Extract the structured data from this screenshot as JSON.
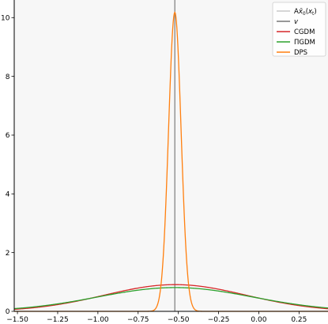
{
  "chart_data": {
    "type": "line",
    "title": "",
    "xlabel": "",
    "ylabel": "",
    "xlim": [
      -1.52,
      0.43
    ],
    "ylim": [
      0,
      10.6
    ],
    "xticks": [
      -1.5,
      -1.25,
      -1.0,
      -0.75,
      -0.5,
      -0.25,
      0.0,
      0.25
    ],
    "xtick_labels": [
      "−1.50",
      "−1.25",
      "−1.00",
      "−0.75",
      "−0.50",
      "−0.25",
      "0.00",
      "0.25"
    ],
    "yticks": [
      0,
      2,
      4,
      6,
      8,
      10
    ],
    "ytick_labels": [
      "0",
      "2",
      "4",
      "6",
      "8",
      "10"
    ],
    "grid": false,
    "legend_position": "top-right",
    "vertical_lines": [
      {
        "name": "Ax̄0(xt)",
        "label_html": "A<tspan font-style=\"italic\">x̄</tspan><tspan font-size=\"6\" dy=\"2\">0</tspan><tspan dy=\"-2\">(</tspan><tspan font-style=\"italic\">x</tspan><tspan font-size=\"6\" dy=\"2\">t</tspan><tspan dy=\"-2\">)</tspan>",
        "x": -0.522,
        "color": "#c8c8c8"
      },
      {
        "name": "v",
        "x": -0.522,
        "color": "#777777"
      }
    ],
    "series": [
      {
        "name": "CGDM",
        "color": "#d62728",
        "kind": "gaussian",
        "mu": -0.52,
        "sigma": 0.44,
        "peak": 0.91
      },
      {
        "name": "ΠGDM",
        "color": "#2ca02c",
        "kind": "gaussian",
        "mu": -0.52,
        "sigma": 0.48,
        "peak": 0.81
      },
      {
        "name": "DPS",
        "color": "#ff7f0e",
        "kind": "gaussian",
        "mu": -0.522,
        "sigma": 0.039,
        "peak": 10.18
      }
    ],
    "legend": [
      "Ax̄0(xt)",
      "v",
      "CGDM",
      "ΠGDM",
      "DPS"
    ]
  },
  "colors": {
    "plot_background": "#f7f7f7",
    "axis": "#000000",
    "legend_border": "#cccccc"
  }
}
